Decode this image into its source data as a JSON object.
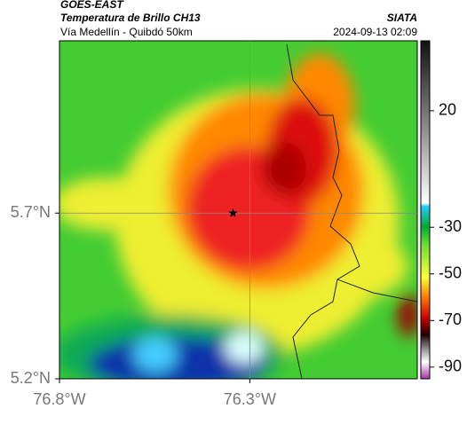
{
  "map": {
    "source": "GOES-EAST",
    "title": "Temperatura de Brillo CH13",
    "brand": "SIATA",
    "subtitle": "Vía Medellín - Quibdó 50km",
    "datetime": "2024-09-13 02:09",
    "xlim": [
      -76.8,
      -75.86
    ],
    "ylim": [
      5.2,
      6.22
    ],
    "xticks": [
      {
        "value": -76.8,
        "label": "76.8°W"
      },
      {
        "value": -76.3,
        "label": "76.3°W"
      }
    ],
    "yticks": [
      {
        "value": 5.2,
        "label": "5.2°N"
      },
      {
        "value": 5.7,
        "label": "5.7°N"
      }
    ],
    "grid": true,
    "marker": {
      "x": -76.344,
      "y": 5.7
    },
    "colorbar": {
      "clim": [
        -95,
        50
      ],
      "ticks": [
        20,
        -30,
        -50,
        -70,
        -90
      ]
    }
  }
}
